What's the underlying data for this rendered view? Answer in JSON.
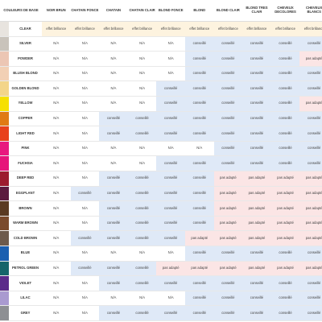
{
  "header": {
    "col0": "COULEURS DE BASE",
    "cols": [
      "NOIR BRUN",
      "CHATAIN FONCE",
      "CHATAIN",
      "CHATAIN CLAIR",
      "BLOND FONCE",
      "BLOND",
      "BLOND CLAIR",
      "BLOND TRES CLAIR",
      "CHEVEUX DECOLORES",
      "CHEVEUX BLANCS"
    ]
  },
  "values": {
    "na": "N/A",
    "effet": "effet brillance",
    "conseille": "conseillé",
    "pas": "pas adapté"
  },
  "rows": [
    {
      "name": "CLEAR",
      "color": "#e8e4df",
      "cells": [
        "effet",
        "effet",
        "effet",
        "effet",
        "effet",
        "effet",
        "effet",
        "effet",
        "effet",
        "effet"
      ]
    },
    {
      "name": "SILVER",
      "color": "#c9c3bb",
      "cells": [
        "na",
        "na",
        "na",
        "na",
        "na",
        "conseille",
        "conseille",
        "conseille",
        "conseille",
        "conseille"
      ]
    },
    {
      "name": "POWDER",
      "color": "#ecc6b4",
      "cells": [
        "na",
        "na",
        "na",
        "na",
        "na",
        "conseille",
        "conseille",
        "conseille",
        "conseille",
        "pas"
      ]
    },
    {
      "name": "BLUSH BLOND",
      "color": "#f2d0b5",
      "cells": [
        "na",
        "na",
        "na",
        "na",
        "na",
        "conseille",
        "conseille",
        "conseille",
        "conseille",
        "conseille"
      ]
    },
    {
      "name": "GOLDEN BLOND",
      "color": "#f3d58a",
      "cells": [
        "na",
        "na",
        "na",
        "na",
        "conseille",
        "conseille",
        "conseille",
        "conseille",
        "conseille",
        "conseille"
      ]
    },
    {
      "name": "YELLOW",
      "color": "#f6e000",
      "cells": [
        "na",
        "na",
        "na",
        "na",
        "conseille",
        "conseille",
        "conseille",
        "conseille",
        "conseille",
        "pas"
      ]
    },
    {
      "name": "COPPER",
      "color": "#e07a14",
      "cells": [
        "na",
        "na",
        "conseille",
        "conseille",
        "conseille",
        "conseille",
        "conseille",
        "conseille",
        "conseille",
        "conseille"
      ]
    },
    {
      "name": "LIGHT RED",
      "color": "#e8401c",
      "cells": [
        "na",
        "na",
        "conseille",
        "conseille",
        "conseille",
        "conseille",
        "conseille",
        "conseille",
        "conseille",
        "conseille"
      ]
    },
    {
      "name": "PINK",
      "color": "#e8197e",
      "cells": [
        "na",
        "na",
        "na",
        "na",
        "na",
        "na",
        "conseille",
        "conseille",
        "conseille",
        "conseille"
      ]
    },
    {
      "name": "FUCHSIA",
      "color": "#e6157a",
      "cells": [
        "na",
        "na",
        "na",
        "na",
        "conseille",
        "conseille",
        "conseille",
        "conseille",
        "conseille",
        "conseille"
      ]
    },
    {
      "name": "DEEP RED",
      "color": "#9c1b2e",
      "cells": [
        "na",
        "na",
        "conseille",
        "conseille",
        "conseille",
        "conseille",
        "pas",
        "pas",
        "pas",
        "pas"
      ]
    },
    {
      "name": "EGGPLANT",
      "color": "#5c1a3e",
      "cells": [
        "na",
        "conseille",
        "conseille",
        "conseille",
        "conseille",
        "conseille",
        "pas",
        "pas",
        "pas",
        "pas"
      ]
    },
    {
      "name": "BROWN",
      "color": "#5a3a22",
      "cells": [
        "na",
        "na",
        "conseille",
        "conseille",
        "conseille",
        "conseille",
        "pas",
        "pas",
        "pas",
        "pas"
      ]
    },
    {
      "name": "WARM BROWN",
      "color": "#7a4a2c",
      "cells": [
        "na",
        "na",
        "conseille",
        "conseille",
        "conseille",
        "conseille",
        "pas",
        "pas",
        "pas",
        "pas"
      ]
    },
    {
      "name": "COLD BROWN",
      "color": "#6d5a4c",
      "cells": [
        "na",
        "conseille",
        "conseille",
        "conseille",
        "conseille",
        "pas",
        "pas",
        "pas",
        "pas",
        "pas"
      ]
    },
    {
      "name": "BLUE",
      "color": "#1b5fb0",
      "cells": [
        "na",
        "na",
        "na",
        "na",
        "na",
        "conseille",
        "conseille",
        "conseille",
        "conseille",
        "conseille"
      ]
    },
    {
      "name": "PETROL GREEN",
      "color": "#16656a",
      "cells": [
        "na",
        "conseille",
        "conseille",
        "conseille",
        "pas",
        "pas",
        "pas",
        "pas",
        "pas",
        "pas"
      ]
    },
    {
      "name": "VIOLET",
      "color": "#5b2b8a",
      "cells": [
        "na",
        "na",
        "conseille",
        "conseille",
        "conseille",
        "conseille",
        "conseille",
        "conseille",
        "conseille",
        "conseille"
      ]
    },
    {
      "name": "LILAC",
      "color": "#a99ad0",
      "cells": [
        "na",
        "na",
        "na",
        "na",
        "na",
        "conseille",
        "conseille",
        "conseille",
        "conseille",
        "conseille"
      ]
    },
    {
      "name": "GREY",
      "color": "#8d8f93",
      "cells": [
        "na",
        "na",
        "conseille",
        "conseille",
        "conseille",
        "conseille",
        "conseille",
        "conseille",
        "conseille",
        "conseille"
      ]
    }
  ],
  "colors": {
    "cell_blue": "#dfe9f7",
    "cell_pink": "#fbe5e5",
    "cell_cream": "#fdf3df"
  }
}
